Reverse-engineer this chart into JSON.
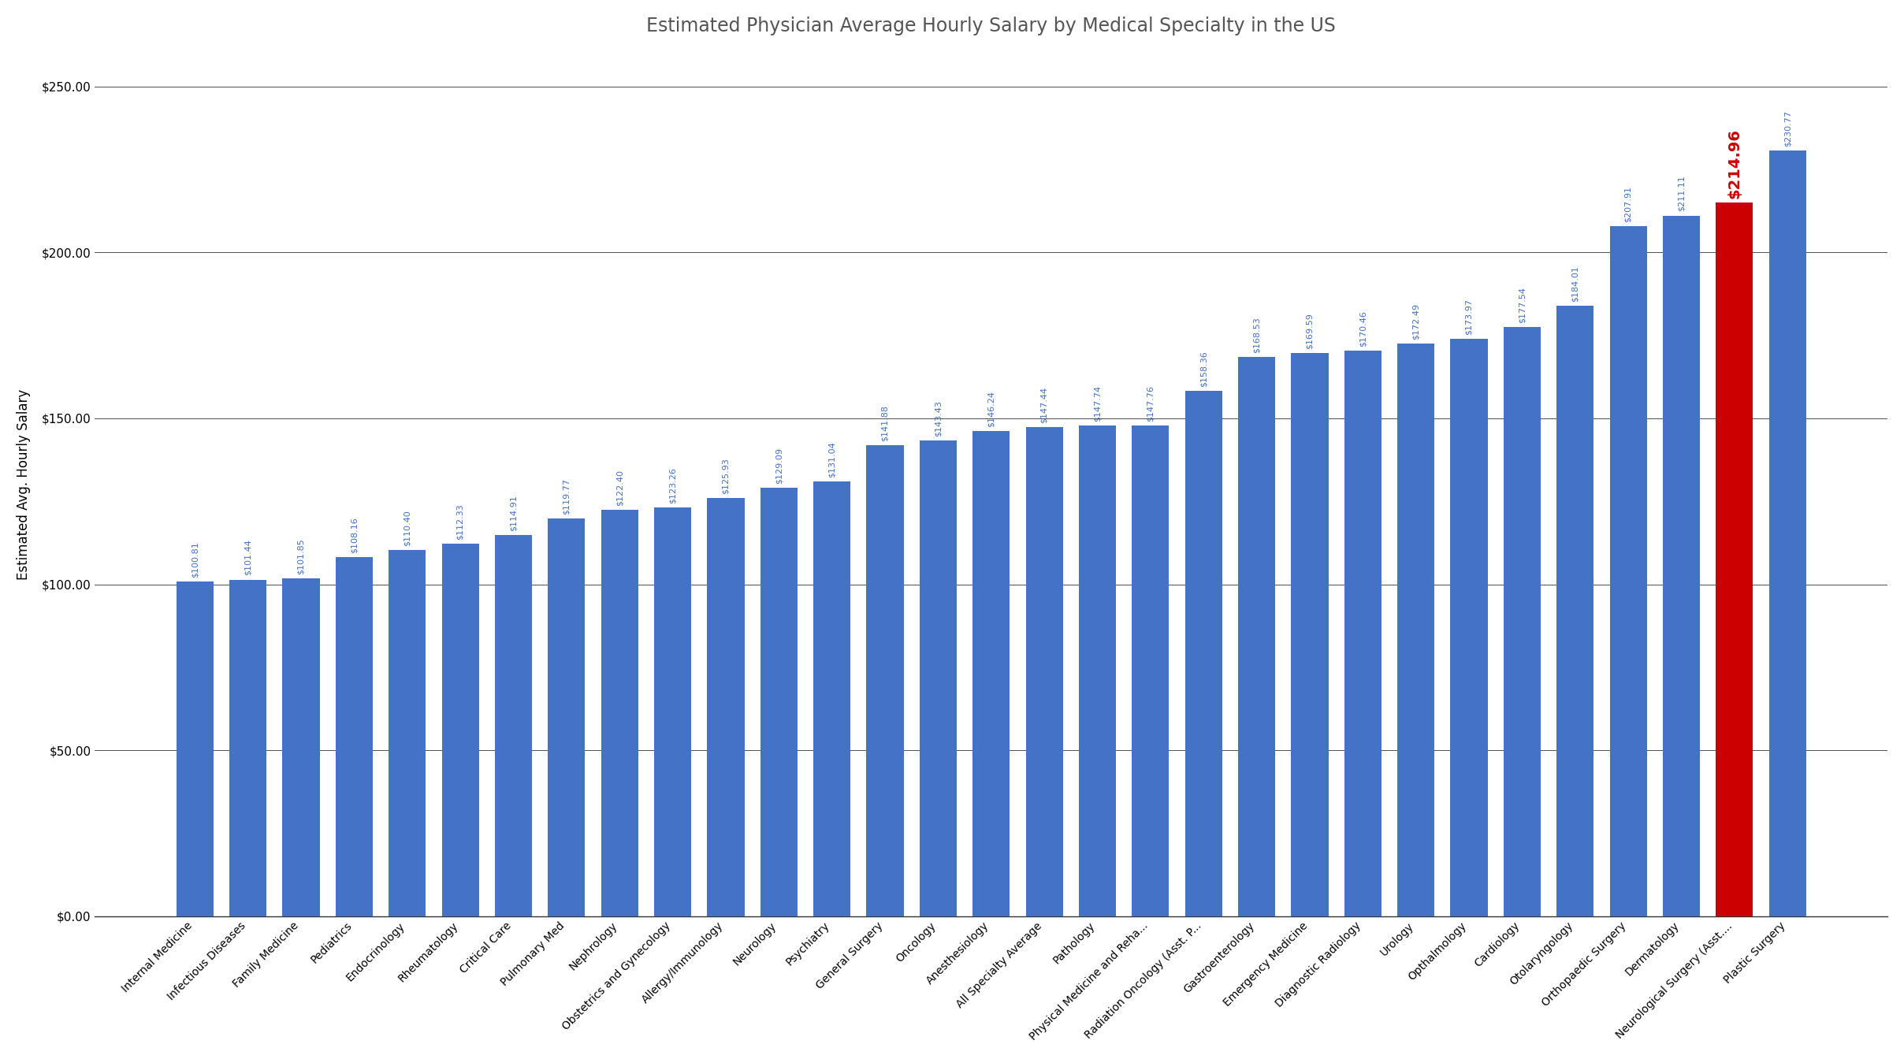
{
  "title": "Estimated Physician Average Hourly Salary by Medical Specialty in the US",
  "ylabel": "Estimated Avg. Hourly Salary",
  "categories": [
    "Internal Medicine",
    "Infectious Diseases",
    "Family Medicine",
    "Pediatrics",
    "Endocrinology",
    "Rheumatology",
    "Critical Care",
    "Pulmonary Med",
    "Nephrology",
    "Obstetrics and Gynecology",
    "Allergy/Immunology",
    "Neurology",
    "Psychiatry",
    "General Surgery",
    "Oncology",
    "Anesthesiology",
    "All Specialty Average",
    "Pathology",
    "Physical Medicine and Reha...",
    "Radiation Oncology (Asst. P...",
    "Gastroenterology",
    "Emergency Medicine",
    "Diagnostic Radiology",
    "Urology",
    "Opthalmology",
    "Cardiology",
    "Otolaryngology",
    "Orthopaedic Surgery",
    "Dermatology",
    "Neurological Surgery (Asst....",
    "Plastic Surgery"
  ],
  "values": [
    100.81,
    101.44,
    101.85,
    108.16,
    110.4,
    112.33,
    114.91,
    119.77,
    122.4,
    123.26,
    125.93,
    129.09,
    131.04,
    141.88,
    143.43,
    146.24,
    147.44,
    147.74,
    147.76,
    158.36,
    168.53,
    169.59,
    170.46,
    172.49,
    173.97,
    177.54,
    184.01,
    207.91,
    211.11,
    214.96,
    230.77
  ],
  "bar_color": "#4472C4",
  "highlight_bar_color": "#CC0000",
  "highlight_index": 29,
  "label_color": "#4472C4",
  "highlight_label_color": "#CC0000",
  "ylim": [
    0,
    260
  ],
  "yticks": [
    0,
    50,
    100,
    150,
    200,
    250
  ],
  "ytick_labels": [
    "$0.00",
    "$50.00",
    "$100.00",
    "$150.00",
    "$200.00",
    "$250.00"
  ],
  "background_color": "#FFFFFF",
  "grid_color": "#333333",
  "title_fontsize": 17,
  "title_color": "#555555",
  "bar_label_fontsize": 8,
  "highlight_label_fontsize": 14,
  "ylabel_fontsize": 12,
  "xtick_fontsize": 10,
  "ytick_fontsize": 11,
  "bar_width": 0.7
}
